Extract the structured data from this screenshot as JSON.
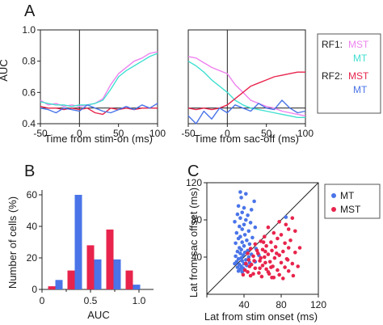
{
  "colors": {
    "mst_rf1": "#ee82ee",
    "mt_rf1": "#40e0d0",
    "mst_rf2": "#e8244c",
    "mt_rf2": "#4a74e8"
  },
  "panels": {
    "a": "A",
    "b": "B",
    "c": "C"
  },
  "legend_a": {
    "rf1_label": "RF1:",
    "rf1_mst": "MST",
    "rf1_mt": "MT",
    "rf2_label": "RF2:",
    "rf2_mst": "MST",
    "rf2_mt": "MT"
  },
  "legend_c": {
    "mt": "MT",
    "mst": "MST"
  },
  "chart_data": [
    {
      "id": "A1",
      "type": "line",
      "xlabel": "Time from stim-on (ms)",
      "ylabel": "AUC",
      "xlim": [
        -50,
        100
      ],
      "ylim": [
        0.4,
        1.0
      ],
      "xticks": [
        -50,
        0,
        50,
        100
      ],
      "yticks": [
        0.4,
        0.6,
        0.8,
        1.0
      ],
      "reference_lines": {
        "x": 0,
        "y": 0.5
      },
      "x": [
        -50,
        -40,
        -30,
        -20,
        -10,
        0,
        10,
        20,
        30,
        40,
        50,
        60,
        70,
        80,
        90,
        100
      ],
      "series": [
        {
          "name": "RF1 MST",
          "color": "#ee82ee",
          "values": [
            0.55,
            0.52,
            0.53,
            0.51,
            0.52,
            0.51,
            0.52,
            0.53,
            0.56,
            0.65,
            0.72,
            0.76,
            0.8,
            0.82,
            0.85,
            0.86
          ]
        },
        {
          "name": "RF1 MT",
          "color": "#40e0d0",
          "values": [
            0.54,
            0.53,
            0.52,
            0.52,
            0.51,
            0.52,
            0.52,
            0.53,
            0.55,
            0.62,
            0.7,
            0.74,
            0.77,
            0.8,
            0.83,
            0.85
          ]
        },
        {
          "name": "RF2 MST",
          "color": "#e8244c",
          "values": [
            0.51,
            0.5,
            0.5,
            0.49,
            0.5,
            0.49,
            0.5,
            0.47,
            0.46,
            0.5,
            0.49,
            0.5,
            0.49,
            0.5,
            0.5,
            0.5
          ]
        },
        {
          "name": "RF2 MT",
          "color": "#4a74e8",
          "values": [
            0.5,
            0.49,
            0.47,
            0.5,
            0.49,
            0.48,
            0.52,
            0.5,
            0.48,
            0.47,
            0.49,
            0.51,
            0.49,
            0.52,
            0.5,
            0.53
          ]
        }
      ]
    },
    {
      "id": "A2",
      "type": "line",
      "xlabel": "Time from sac-off (ms)",
      "xlim": [
        -50,
        100
      ],
      "ylim": [
        0.4,
        1.0
      ],
      "xticks": [
        -50,
        0,
        50,
        100
      ],
      "reference_lines": {
        "x": 0,
        "y": 0.5
      },
      "x": [
        -50,
        -40,
        -30,
        -20,
        -10,
        0,
        10,
        20,
        30,
        40,
        50,
        60,
        70,
        80,
        90,
        100
      ],
      "series": [
        {
          "name": "RF1 MST",
          "color": "#ee82ee",
          "values": [
            0.83,
            0.82,
            0.79,
            0.76,
            0.74,
            0.72,
            0.65,
            0.6,
            0.55,
            0.53,
            0.51,
            0.5,
            0.48,
            0.47,
            0.46,
            0.45
          ]
        },
        {
          "name": "RF1 MT",
          "color": "#40e0d0",
          "values": [
            0.8,
            0.77,
            0.73,
            0.68,
            0.64,
            0.6,
            0.55,
            0.52,
            0.5,
            0.49,
            0.48,
            0.47,
            0.46,
            0.45,
            0.44,
            0.44
          ]
        },
        {
          "name": "RF2 MST",
          "color": "#e8244c",
          "values": [
            0.5,
            0.49,
            0.5,
            0.49,
            0.5,
            0.52,
            0.56,
            0.6,
            0.64,
            0.66,
            0.68,
            0.7,
            0.71,
            0.72,
            0.73,
            0.73
          ]
        },
        {
          "name": "RF2 MT",
          "color": "#4a74e8",
          "values": [
            0.45,
            0.4,
            0.48,
            0.43,
            0.5,
            0.47,
            0.52,
            0.5,
            0.48,
            0.53,
            0.5,
            0.49,
            0.55,
            0.5,
            0.47,
            0.48
          ]
        }
      ]
    },
    {
      "id": "B",
      "type": "bar",
      "xlabel": "AUC",
      "ylabel": "Number of cells (%)",
      "xlim": [
        0,
        1.1
      ],
      "ylim": [
        0,
        60
      ],
      "xticks": [
        0,
        0.5,
        1.0
      ],
      "yticks": [
        0,
        20,
        40,
        60
      ],
      "bar_width": 0.075,
      "series": [
        {
          "name": "MST",
          "color": "#e8244c",
          "centers": [
            0.1,
            0.3,
            0.5,
            0.7,
            0.9
          ],
          "values": [
            2,
            12,
            28,
            38,
            12
          ]
        },
        {
          "name": "MT",
          "color": "#4a74e8",
          "centers": [
            0.175,
            0.375,
            0.575,
            0.775,
            0.975
          ],
          "values": [
            6,
            60,
            19,
            19,
            3
          ]
        }
      ]
    },
    {
      "id": "C",
      "type": "scatter",
      "xlabel": "Lat from stim onset (ms)",
      "ylabel": "Lat from sac offset (ms)",
      "xlim": [
        0,
        120
      ],
      "ylim": [
        0,
        120
      ],
      "xticks": [
        0,
        40,
        80,
        120
      ],
      "yticks": [
        40,
        80,
        120
      ],
      "diagonal": true,
      "series": [
        {
          "name": "MT",
          "color": "#4a74e8",
          "points": [
            [
              36,
              110
            ],
            [
              42,
              108
            ],
            [
              37,
              104
            ],
            [
              51,
              100
            ],
            [
              34,
              95
            ],
            [
              40,
              93
            ],
            [
              48,
              91
            ],
            [
              38,
              88
            ],
            [
              33,
              86
            ],
            [
              44,
              85
            ],
            [
              85,
              83
            ],
            [
              36,
              82
            ],
            [
              42,
              80
            ],
            [
              30,
              78
            ],
            [
              47,
              77
            ],
            [
              40,
              75
            ],
            [
              35,
              73
            ],
            [
              52,
              72
            ],
            [
              38,
              70
            ],
            [
              45,
              68
            ],
            [
              32,
              66
            ],
            [
              41,
              64
            ],
            [
              36,
              62
            ],
            [
              49,
              61
            ],
            [
              34,
              60
            ],
            [
              43,
              58
            ],
            [
              38,
              56
            ],
            [
              31,
              55
            ],
            [
              46,
              54
            ],
            [
              40,
              52
            ],
            [
              35,
              50
            ],
            [
              53,
              49
            ],
            [
              37,
              48
            ],
            [
              44,
              47
            ],
            [
              33,
              46
            ],
            [
              41,
              45
            ],
            [
              36,
              44
            ],
            [
              48,
              43
            ],
            [
              39,
              42
            ],
            [
              31,
              41
            ],
            [
              45,
              40
            ],
            [
              37,
              39
            ],
            [
              34,
              38
            ],
            [
              42,
              37
            ],
            [
              38,
              36
            ],
            [
              32,
              35
            ],
            [
              46,
              34
            ],
            [
              40,
              33
            ],
            [
              35,
              32
            ],
            [
              43,
              31
            ],
            [
              37,
              30
            ],
            [
              33,
              29
            ],
            [
              39,
              28
            ],
            [
              36,
              27
            ],
            [
              41,
              26
            ],
            [
              34,
              25
            ],
            [
              38,
              24
            ],
            [
              52,
              35
            ],
            [
              56,
              42
            ],
            [
              30,
              33
            ]
          ]
        },
        {
          "name": "MST",
          "color": "#e8244c",
          "points": [
            [
              92,
              82
            ],
            [
              78,
              78
            ],
            [
              85,
              75
            ],
            [
              66,
              72
            ],
            [
              88,
              70
            ],
            [
              95,
              68
            ],
            [
              72,
              66
            ],
            [
              80,
              64
            ],
            [
              62,
              62
            ],
            [
              76,
              60
            ],
            [
              90,
              58
            ],
            [
              58,
              57
            ],
            [
              69,
              56
            ],
            [
              84,
              55
            ],
            [
              52,
              54
            ],
            [
              64,
              52
            ],
            [
              74,
              51
            ],
            [
              88,
              50
            ],
            [
              47,
              49
            ],
            [
              60,
              48
            ],
            [
              70,
              47
            ],
            [
              82,
              46
            ],
            [
              95,
              45
            ],
            [
              55,
              44
            ],
            [
              66,
              43
            ],
            [
              78,
              42
            ],
            [
              50,
              41
            ],
            [
              62,
              40
            ],
            [
              73,
              39
            ],
            [
              86,
              38
            ],
            [
              45,
              37
            ],
            [
              57,
              36
            ],
            [
              68,
              35
            ],
            [
              80,
              34
            ],
            [
              92,
              33
            ],
            [
              48,
              32
            ],
            [
              60,
              31
            ],
            [
              71,
              30
            ],
            [
              84,
              29
            ],
            [
              52,
              28
            ],
            [
              64,
              27
            ],
            [
              76,
              26
            ],
            [
              88,
              25
            ],
            [
              44,
              24
            ],
            [
              56,
              23
            ],
            [
              67,
              22
            ],
            [
              78,
              21
            ],
            [
              47,
              20
            ],
            [
              59,
              19
            ],
            [
              70,
              18
            ],
            [
              82,
              17
            ],
            [
              41,
              26
            ],
            [
              50,
              22
            ],
            [
              63,
              34
            ],
            [
              75,
              44
            ],
            [
              58,
              39
            ],
            [
              69,
              29
            ],
            [
              87,
              37
            ],
            [
              46,
              30
            ],
            [
              54,
              47
            ],
            [
              61,
              56
            ],
            [
              98,
              30
            ],
            [
              93,
              20
            ],
            [
              100,
              50
            ],
            [
              42,
              33
            ],
            [
              51,
              36
            ],
            [
              66,
              24
            ],
            [
              72,
              18
            ],
            [
              39,
              21
            ],
            [
              44,
              44
            ],
            [
              57,
              28
            ],
            [
              63,
              46
            ]
          ]
        }
      ]
    }
  ]
}
